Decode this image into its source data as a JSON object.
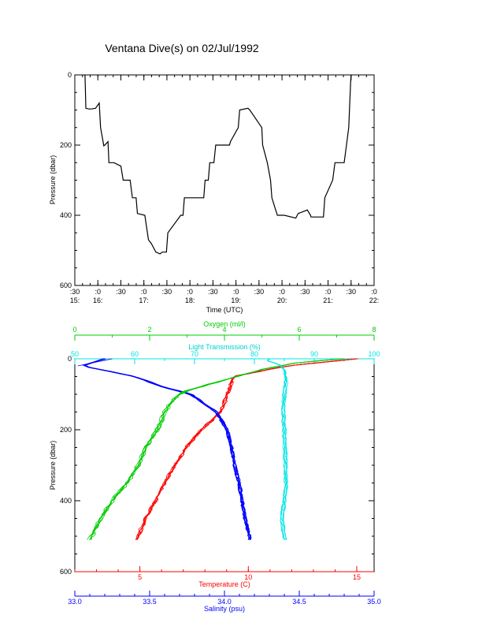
{
  "title": "Ventana Dive(s) on 02/Jul/1992",
  "colors": {
    "black": "#000000",
    "temperature": "#ff0000",
    "salinity": "#0000ff",
    "oxygen": "#00cc00",
    "transmission": "#00e5e5"
  },
  "chart_data": [
    {
      "type": "line",
      "name": "time-series",
      "xlabel": "Time (UTC)",
      "ylabel": "Pressure (dbar)",
      "ylim": [
        600,
        0
      ],
      "yticks": [
        "0",
        "200",
        "400",
        "600"
      ],
      "xtick_minutes": [
        ":30",
        ":0",
        ":30",
        ":0",
        ":30",
        ":0",
        ":30",
        ":0",
        ":30",
        ":0",
        ":30",
        ":0",
        ":30",
        ":0"
      ],
      "xtick_hours": [
        "15:",
        "16:",
        "",
        "17:",
        "",
        "18:",
        "",
        "19:",
        "",
        "20:",
        "",
        "21:",
        "",
        "22:"
      ],
      "x_unit": "hours UTC",
      "xlim": [
        15.5,
        22.0
      ],
      "series": [
        {
          "x": [
            15.72,
            15.73,
            15.74,
            15.8,
            15.86,
            15.95,
            16.03,
            16.06,
            16.13,
            16.15,
            16.22,
            16.24,
            16.35,
            16.5,
            16.55,
            16.7,
            16.75,
            16.83,
            16.86,
            17.02,
            17.1,
            17.16,
            17.26,
            17.35,
            17.4,
            17.49,
            17.52,
            17.8,
            17.85,
            17.88,
            18.3,
            18.33,
            18.4,
            18.43,
            18.52,
            18.56,
            18.86,
            18.88,
            19.05,
            19.08,
            19.26,
            19.3,
            19.56,
            19.58,
            19.68,
            19.75,
            19.78,
            19.85,
            19.9,
            20.05,
            20.3,
            20.35,
            20.55,
            20.62,
            20.63,
            20.9,
            20.93,
            21.1,
            21.15,
            21.35,
            21.45,
            21.49,
            21.5
          ],
          "y": [
            0,
            40,
            95,
            97,
            97,
            95,
            80,
            150,
            202,
            200,
            190,
            250,
            250,
            260,
            300,
            300,
            350,
            350,
            395,
            400,
            470,
            480,
            505,
            510,
            505,
            505,
            450,
            400,
            400,
            350,
            350,
            300,
            300,
            250,
            250,
            200,
            200,
            190,
            150,
            100,
            95,
            100,
            150,
            200,
            250,
            300,
            350,
            380,
            400,
            400,
            408,
            395,
            385,
            400,
            405,
            405,
            350,
            300,
            250,
            250,
            150,
            20,
            0
          ]
        }
      ]
    },
    {
      "type": "scatter",
      "name": "profiles",
      "ylabel": "Pressure (dbar)",
      "ylim": [
        600,
        0
      ],
      "yticks": [
        "0",
        "200",
        "400",
        "600"
      ],
      "axes": {
        "oxygen": {
          "label": "Oxygen (ml/l)",
          "range": [
            0,
            8
          ],
          "ticks": [
            "0",
            "2",
            "4",
            "6",
            "8"
          ]
        },
        "transmission": {
          "label": "Light Transmission (%)",
          "range": [
            50,
            100
          ],
          "ticks": [
            "50",
            "60",
            "70",
            "80",
            "90",
            "100"
          ]
        },
        "temperature": {
          "label": "Temperature (C)",
          "range": [
            2,
            15.8
          ],
          "ticks": [
            "5",
            "10",
            "15"
          ]
        },
        "salinity": {
          "label": "Salinity (psu)",
          "range": [
            33.0,
            35.0
          ],
          "ticks": [
            "33.0",
            "33.5",
            "34.0",
            "34.5",
            "35.0"
          ]
        }
      },
      "series": [
        {
          "name": "Temperature",
          "axis": "temperature",
          "pressure": [
            0,
            20,
            50,
            100,
            150,
            200,
            250,
            300,
            350,
            400,
            450,
            500,
            510
          ],
          "value": [
            15.0,
            11.8,
            9.3,
            9.0,
            8.7,
            7.8,
            7.1,
            6.6,
            6.1,
            5.7,
            5.2,
            4.9,
            4.8
          ]
        },
        {
          "name": "Salinity",
          "axis": "salinity",
          "pressure": [
            0,
            20,
            50,
            80,
            100,
            130,
            150,
            200,
            250,
            300,
            350,
            400,
            450,
            500,
            510
          ],
          "value": [
            33.2,
            33.05,
            33.4,
            33.6,
            33.78,
            33.88,
            33.95,
            34.02,
            34.05,
            34.07,
            34.1,
            34.12,
            34.14,
            34.17,
            34.17
          ],
          "extra": {
            "pressure": [
              0,
              20
            ],
            "value": [
              33.25,
              33.02
            ]
          }
        },
        {
          "name": "Oxygen",
          "axis": "oxygen",
          "pressure": [
            0,
            10,
            30,
            60,
            90,
            100,
            120,
            150,
            180,
            200,
            250,
            300,
            350,
            400,
            450,
            500,
            510
          ],
          "value": [
            7.2,
            6.0,
            5.0,
            4.0,
            3.0,
            2.8,
            2.6,
            2.4,
            2.3,
            2.2,
            1.9,
            1.7,
            1.4,
            1.0,
            0.7,
            0.45,
            0.4
          ]
        },
        {
          "name": "Light Transmission",
          "axis": "transmission",
          "pressure": [
            0,
            5,
            15,
            30,
            60,
            100,
            150,
            200,
            250,
            300,
            350,
            400,
            450,
            480,
            500,
            510
          ],
          "value": [
            82.5,
            82.0,
            84.0,
            85.0,
            85.3,
            85.0,
            84.8,
            85.0,
            85.1,
            85.2,
            85.3,
            85.0,
            84.6,
            84.8,
            85.0,
            85.2
          ]
        }
      ]
    }
  ]
}
